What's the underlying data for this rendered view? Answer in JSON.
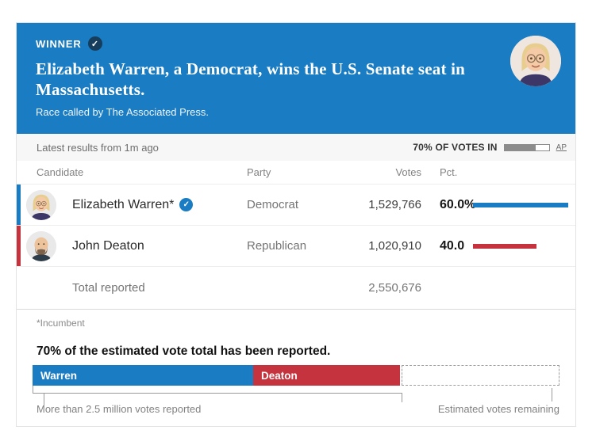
{
  "banner": {
    "winner_label": "WINNER",
    "headline": "Elizabeth Warren, a Democrat, wins the U.S. Senate seat in Massachusetts.",
    "subhead": "Race called by The Associated Press.",
    "bg_color": "#1a7cc2",
    "check_badge_color": "#173d5c"
  },
  "status_bar": {
    "latest_results": "Latest results from 1m ago",
    "votes_in_label": "70% OF VOTES IN",
    "votes_in_pct": 70,
    "source": "AP"
  },
  "results_table": {
    "columns": {
      "candidate": "Candidate",
      "party": "Party",
      "votes": "Votes",
      "pct": "Pct."
    },
    "rows": [
      {
        "name": "Elizabeth Warren*",
        "winner": true,
        "check": "✓",
        "party": "Democrat",
        "votes": "1,529,766",
        "pct": "60.0%",
        "pct_value": 60,
        "color": "#1a7cc2"
      },
      {
        "name": "John Deaton",
        "winner": false,
        "check": "✓",
        "party": "Republican",
        "votes": "1,020,910",
        "pct": "40.0",
        "pct_value": 40,
        "color": "#c5333e"
      }
    ],
    "total_label": "Total reported",
    "total_votes": "2,550,676"
  },
  "footnote": "*Incumbent",
  "progress_section": {
    "heading": "70% of the estimated vote total has been reported.",
    "segments": [
      {
        "label": "Warren",
        "pct_of_total": 42,
        "color": "#1a7cc2"
      },
      {
        "label": "Deaton",
        "pct_of_total": 28,
        "color": "#c5333e"
      }
    ],
    "reported_pct": 70,
    "remaining_pct": 30,
    "left_caption": "More than 2.5 million votes reported",
    "right_caption": "Estimated votes remaining"
  },
  "winner_check_glyph": "✓"
}
